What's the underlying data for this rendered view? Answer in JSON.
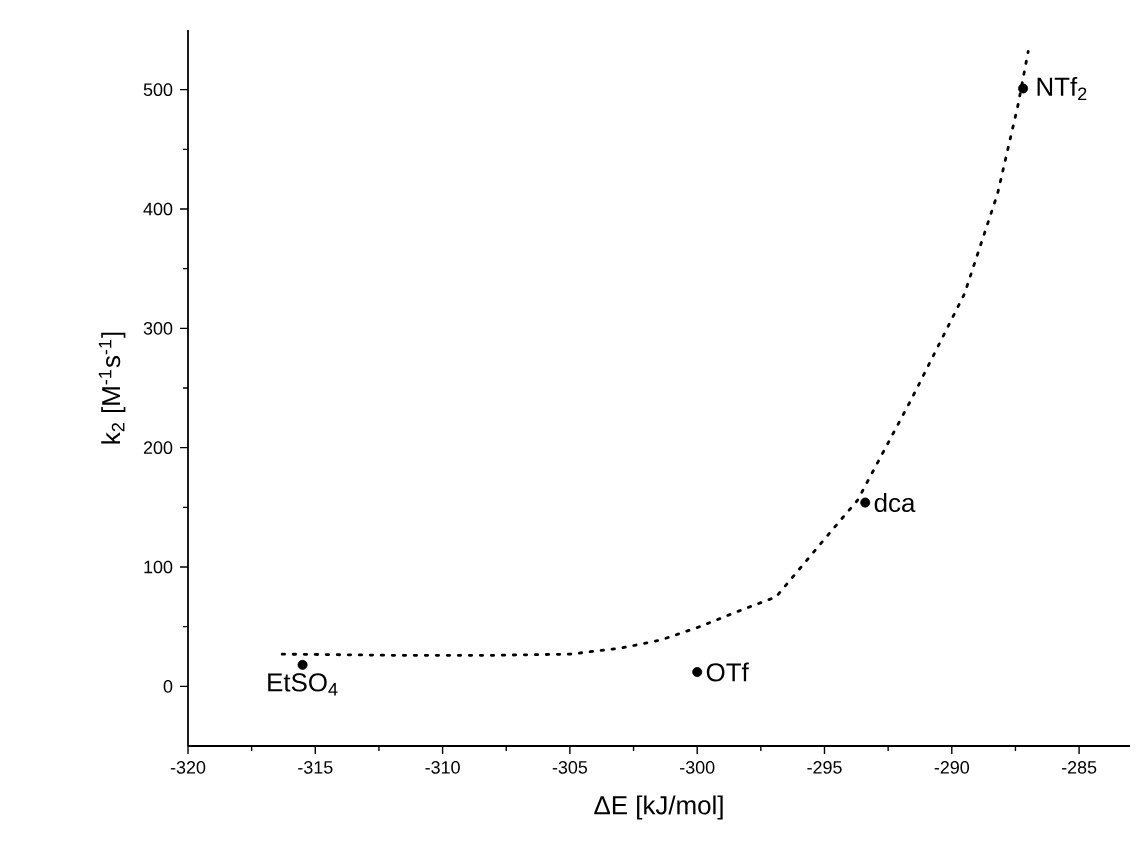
{
  "chart_data": {
    "type": "scatter",
    "xlabel": "ΔE [kJ/mol]",
    "ylabel": "k$_{2}$ [M$^{-1}$s$^{-1}$]",
    "xlim": [
      -320,
      -283
    ],
    "ylim": [
      -50,
      550
    ],
    "xticks": [
      -320,
      -315,
      -310,
      -305,
      -300,
      -295,
      -290,
      -285
    ],
    "yticks": [
      0,
      100,
      200,
      300,
      400,
      500
    ],
    "series": [
      {
        "color": "#000000",
        "marker": "circle",
        "x": [
          -315.5,
          -300,
          -293.4,
          -287.2
        ],
        "values": [
          18,
          12,
          154,
          501
        ]
      },
      {
        "type": "line",
        "color": "#000000",
        "line_style": "dotted",
        "marker": "none",
        "x": [
          -316.3,
          -312,
          -308,
          -305,
          -303,
          -301.4,
          -299.9,
          -298.5,
          -296.9,
          -294.7,
          -293.7,
          -291.6,
          -289.5,
          -288.2,
          -287.4,
          -287.0
        ],
        "values": [
          27,
          26,
          26,
          27,
          32,
          39,
          50,
          62,
          75,
          131,
          156,
          240,
          329,
          413,
          487,
          532
        ]
      }
    ],
    "annotations": [
      {
        "text": "EtSO$_{4}$",
        "x": -315.5,
        "y": 18
      },
      {
        "text": "OTf",
        "x": -300,
        "y": 12
      },
      {
        "text": "dca",
        "x": -293.4,
        "y": 154
      },
      {
        "text": "NTf$_{2}$",
        "x": -287.2,
        "y": 501
      }
    ]
  }
}
